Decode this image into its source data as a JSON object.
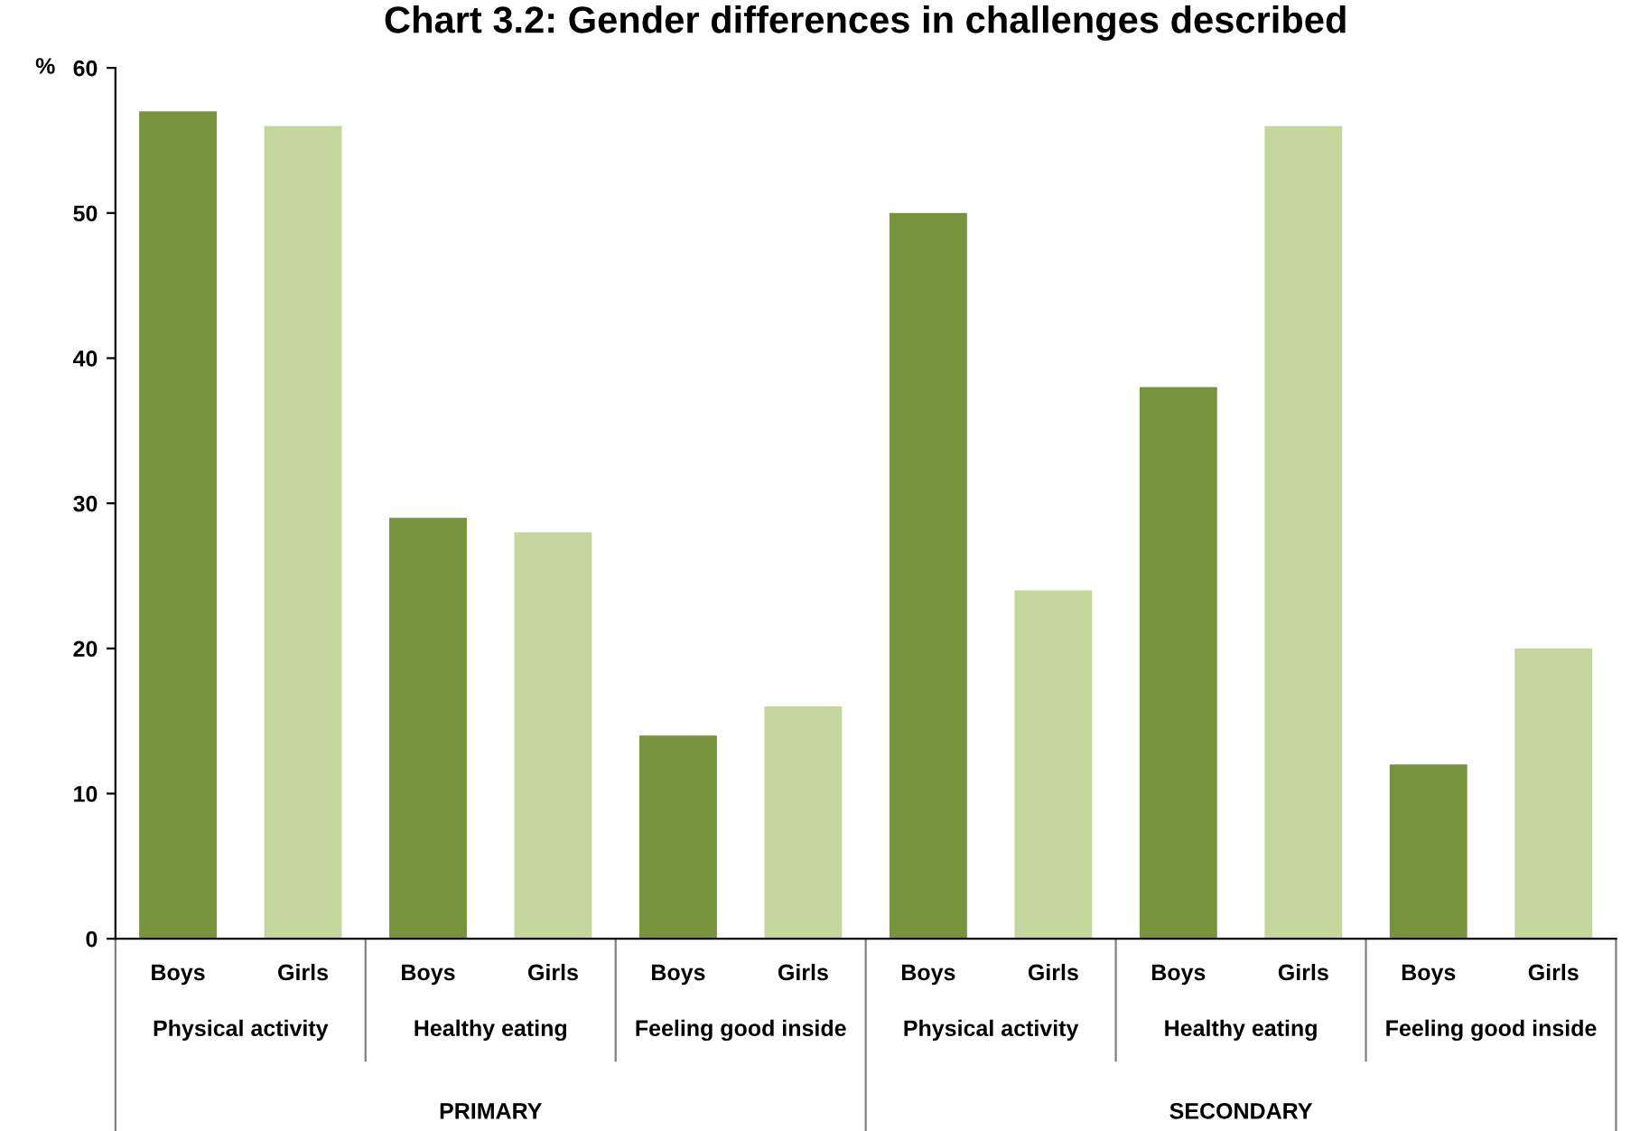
{
  "chart_data": {
    "type": "bar",
    "title": "Chart 3.2: Gender differences in challenges described",
    "ylabel": "%",
    "categories": [
      "Boys",
      "Girls",
      "Boys",
      "Girls",
      "Boys",
      "Girls",
      "Boys",
      "Girls",
      "Boys",
      "Girls",
      "Boys",
      "Girls"
    ],
    "values": [
      57,
      56,
      29,
      28,
      14,
      16,
      50,
      24,
      38,
      56,
      12,
      20
    ],
    "colors": [
      "#77933c",
      "#c3d69b",
      "#77933c",
      "#c3d69b",
      "#77933c",
      "#c3d69b",
      "#77933c",
      "#c3d69b",
      "#77933c",
      "#c3d69b",
      "#77933c",
      "#c3d69b"
    ],
    "annotations": [
      "Physical activity",
      "Healthy eating",
      "Feeling good inside",
      "Physical activity",
      "Healthy eating",
      "Feeling good inside",
      "PRIMARY",
      "SECONDARY"
    ],
    "ylim": [
      0,
      60
    ],
    "yticks": [
      0,
      10,
      20,
      30,
      40,
      50,
      60
    ],
    "grid": false,
    "legend": false
  }
}
